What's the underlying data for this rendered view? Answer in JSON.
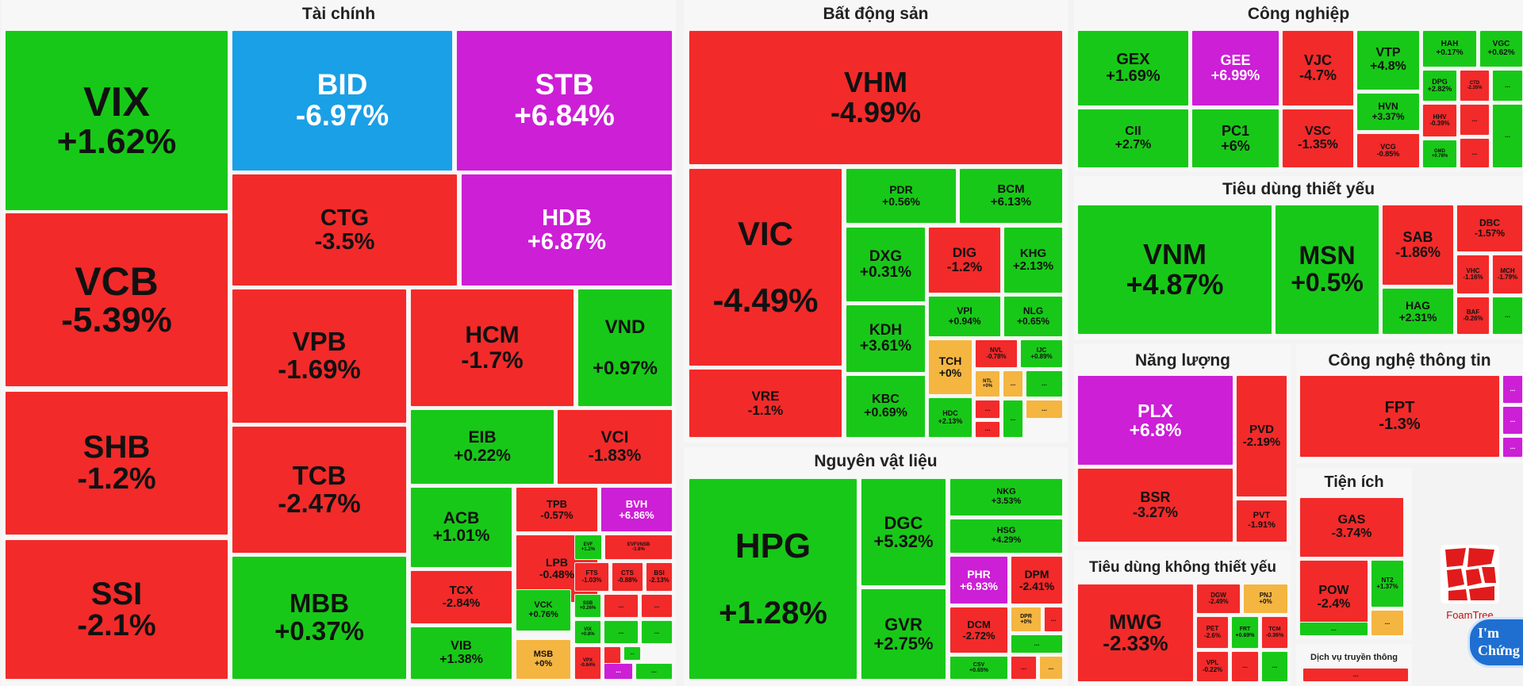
{
  "colors": {
    "up": "#18c818",
    "down": "#f22a2a",
    "ceiling": "#cc1fd6",
    "floor": "#1aa0e6",
    "ref": "#f5b541"
  },
  "chart_data": {
    "type": "treemap",
    "sectors": [
      {
        "name": "Tài chính",
        "tiles": [
          {
            "symbol": "VIX",
            "change": "+1.62%",
            "status": "up"
          },
          {
            "symbol": "VCB",
            "change": "-5.39%",
            "status": "down"
          },
          {
            "symbol": "SHB",
            "change": "-1.2%",
            "status": "down"
          },
          {
            "symbol": "SSI",
            "change": "-2.1%",
            "status": "down"
          },
          {
            "symbol": "BID",
            "change": "-6.97%",
            "status": "floor"
          },
          {
            "symbol": "STB",
            "change": "+6.84%",
            "status": "ceiling"
          },
          {
            "symbol": "CTG",
            "change": "-3.5%",
            "status": "down"
          },
          {
            "symbol": "HDB",
            "change": "+6.87%",
            "status": "ceiling"
          },
          {
            "symbol": "VPB",
            "change": "-1.69%",
            "status": "down"
          },
          {
            "symbol": "TCB",
            "change": "-2.47%",
            "status": "down"
          },
          {
            "symbol": "MBB",
            "change": "+0.37%",
            "status": "up"
          },
          {
            "symbol": "HCM",
            "change": "-1.7%",
            "status": "down"
          },
          {
            "symbol": "VND",
            "change": "+0.97%",
            "status": "up"
          },
          {
            "symbol": "EIB",
            "change": "+0.22%",
            "status": "up"
          },
          {
            "symbol": "VCI",
            "change": "-1.83%",
            "status": "down"
          },
          {
            "symbol": "ACB",
            "change": "+1.01%",
            "status": "up"
          },
          {
            "symbol": "TCX",
            "change": "-2.84%",
            "status": "down"
          },
          {
            "symbol": "VIB",
            "change": "+1.38%",
            "status": "up"
          },
          {
            "symbol": "TPB",
            "change": "-0.57%",
            "status": "down"
          },
          {
            "symbol": "BVH",
            "change": "+6.86%",
            "status": "ceiling"
          },
          {
            "symbol": "LPB",
            "change": "-0.48%",
            "status": "down"
          },
          {
            "symbol": "VCK",
            "change": "+0.76%",
            "status": "up"
          },
          {
            "symbol": "MSB",
            "change": "+0%",
            "status": "ref"
          },
          {
            "symbol": "EVF",
            "change": "+1.2%",
            "status": "up"
          },
          {
            "symbol": "EVFVNSB",
            "change": "-1.6%",
            "status": "down"
          },
          {
            "symbol": "FTS",
            "change": "-1.03%",
            "status": "down"
          },
          {
            "symbol": "CTS",
            "change": "-0.88%",
            "status": "down"
          },
          {
            "symbol": "BSI",
            "change": "-2.13%",
            "status": "down"
          },
          {
            "symbol": "SSB",
            "change": "+0.26%",
            "status": "up"
          },
          {
            "symbol": "VIX",
            "change": "+0.8%",
            "status": "up"
          },
          {
            "symbol": "VPX",
            "change": "-0.84%",
            "status": "down"
          },
          {
            "symbol": "...",
            "change": "",
            "status": "down"
          },
          {
            "symbol": "...",
            "change": "",
            "status": "down"
          },
          {
            "symbol": "...",
            "change": "",
            "status": "up"
          },
          {
            "symbol": "...",
            "change": "",
            "status": "up"
          },
          {
            "symbol": "...",
            "change": "",
            "status": "down"
          },
          {
            "symbol": "...",
            "change": "",
            "status": "up"
          },
          {
            "symbol": "...",
            "change": "",
            "status": "ceiling"
          },
          {
            "symbol": "...",
            "change": "",
            "status": "up"
          }
        ]
      },
      {
        "name": "Bất động sản",
        "tiles": [
          {
            "symbol": "VHM",
            "change": "-4.99%",
            "status": "down"
          },
          {
            "symbol": "VIC",
            "change": "-4.49%",
            "status": "down"
          },
          {
            "symbol": "VRE",
            "change": "-1.1%",
            "status": "down"
          },
          {
            "symbol": "PDR",
            "change": "+0.56%",
            "status": "up"
          },
          {
            "symbol": "BCM",
            "change": "+6.13%",
            "status": "up"
          },
          {
            "symbol": "DXG",
            "change": "+0.31%",
            "status": "up"
          },
          {
            "symbol": "DIG",
            "change": "-1.2%",
            "status": "down"
          },
          {
            "symbol": "KHG",
            "change": "+2.13%",
            "status": "up"
          },
          {
            "symbol": "KDH",
            "change": "+3.61%",
            "status": "up"
          },
          {
            "symbol": "VPI",
            "change": "+0.94%",
            "status": "up"
          },
          {
            "symbol": "NLG",
            "change": "+0.65%",
            "status": "up"
          },
          {
            "symbol": "KBC",
            "change": "+0.69%",
            "status": "up"
          },
          {
            "symbol": "TCH",
            "change": "+0%",
            "status": "ref"
          },
          {
            "symbol": "NVL",
            "change": "-0.78%",
            "status": "down"
          },
          {
            "symbol": "IJC",
            "change": "+0.89%",
            "status": "up"
          },
          {
            "symbol": "NTL",
            "change": "+0%",
            "status": "ref"
          },
          {
            "symbol": "HDC",
            "change": "+2.13%",
            "status": "up"
          },
          {
            "symbol": "...",
            "change": "",
            "status": "down"
          },
          {
            "symbol": "...",
            "change": "",
            "status": "ref"
          },
          {
            "symbol": "...",
            "change": "",
            "status": "up"
          },
          {
            "symbol": "...",
            "change": "",
            "status": "ref"
          },
          {
            "symbol": "...",
            "change": "",
            "status": "down"
          },
          {
            "symbol": "...",
            "change": "",
            "status": "up"
          }
        ]
      },
      {
        "name": "Nguyên vật liệu",
        "tiles": [
          {
            "symbol": "HPG",
            "change": "+1.28%",
            "status": "up"
          },
          {
            "symbol": "DGC",
            "change": "+5.32%",
            "status": "up"
          },
          {
            "symbol": "GVR",
            "change": "+2.75%",
            "status": "up"
          },
          {
            "symbol": "NKG",
            "change": "+3.53%",
            "status": "up"
          },
          {
            "symbol": "HSG",
            "change": "+4.29%",
            "status": "up"
          },
          {
            "symbol": "PHR",
            "change": "+6.93%",
            "status": "ceiling"
          },
          {
            "symbol": "DPM",
            "change": "-2.41%",
            "status": "down"
          },
          {
            "symbol": "DCM",
            "change": "-2.72%",
            "status": "down"
          },
          {
            "symbol": "DPR",
            "change": "+0%",
            "status": "ref"
          },
          {
            "symbol": "CSV",
            "change": "+0.65%",
            "status": "up"
          },
          {
            "symbol": "...",
            "change": "",
            "status": "down"
          },
          {
            "symbol": "...",
            "change": "",
            "status": "up"
          },
          {
            "symbol": "...",
            "change": "",
            "status": "down"
          },
          {
            "symbol": "...",
            "change": "",
            "status": "ref"
          }
        ]
      },
      {
        "name": "Công nghiệp",
        "tiles": [
          {
            "symbol": "GEX",
            "change": "+1.69%",
            "status": "up"
          },
          {
            "symbol": "GEE",
            "change": "+6.99%",
            "status": "ceiling"
          },
          {
            "symbol": "VJC",
            "change": "-4.7%",
            "status": "down"
          },
          {
            "symbol": "VTP",
            "change": "+4.8%",
            "status": "up"
          },
          {
            "symbol": "HAH",
            "change": "+0.17%",
            "status": "up"
          },
          {
            "symbol": "VGC",
            "change": "+0.62%",
            "status": "up"
          },
          {
            "symbol": "CII",
            "change": "+2.7%",
            "status": "up"
          },
          {
            "symbol": "PC1",
            "change": "+6%",
            "status": "up"
          },
          {
            "symbol": "VSC",
            "change": "-1.35%",
            "status": "down"
          },
          {
            "symbol": "HVN",
            "change": "+3.37%",
            "status": "up"
          },
          {
            "symbol": "VCG",
            "change": "-0.85%",
            "status": "down"
          },
          {
            "symbol": "DPG",
            "change": "+2.82%",
            "status": "up"
          },
          {
            "symbol": "CTD",
            "change": "-2.35%",
            "status": "down"
          },
          {
            "symbol": "HHV",
            "change": "-0.39%",
            "status": "down"
          },
          {
            "symbol": "GMD",
            "change": "+0.78%",
            "status": "up"
          },
          {
            "symbol": "...",
            "change": "",
            "status": "down"
          },
          {
            "symbol": "...",
            "change": "",
            "status": "up"
          },
          {
            "symbol": "...",
            "change": "",
            "status": "down"
          },
          {
            "symbol": "...",
            "change": "",
            "status": "up"
          }
        ]
      },
      {
        "name": "Tiêu dùng thiết yếu",
        "tiles": [
          {
            "symbol": "VNM",
            "change": "+4.87%",
            "status": "up"
          },
          {
            "symbol": "MSN",
            "change": "+0.5%",
            "status": "up"
          },
          {
            "symbol": "SAB",
            "change": "-1.86%",
            "status": "down"
          },
          {
            "symbol": "DBC",
            "change": "-1.57%",
            "status": "down"
          },
          {
            "symbol": "HAG",
            "change": "+2.31%",
            "status": "up"
          },
          {
            "symbol": "VHC",
            "change": "-1.16%",
            "status": "down"
          },
          {
            "symbol": "MCH",
            "change": "-1.79%",
            "status": "down"
          },
          {
            "symbol": "BAF",
            "change": "-0.26%",
            "status": "down"
          },
          {
            "symbol": "...",
            "change": "",
            "status": "up"
          },
          {
            "symbol": "...",
            "change": "",
            "status": "down"
          },
          {
            "symbol": "...",
            "change": "",
            "status": "up"
          }
        ]
      },
      {
        "name": "Năng lượng",
        "tiles": [
          {
            "symbol": "PLX",
            "change": "+6.8%",
            "status": "ceiling"
          },
          {
            "symbol": "PVD",
            "change": "-2.19%",
            "status": "down"
          },
          {
            "symbol": "BSR",
            "change": "-3.27%",
            "status": "down"
          },
          {
            "symbol": "PVT",
            "change": "-1.91%",
            "status": "down"
          }
        ]
      },
      {
        "name": "Công nghệ thông tin",
        "tiles": [
          {
            "symbol": "FPT",
            "change": "-1.3%",
            "status": "down"
          },
          {
            "symbol": "...",
            "change": "",
            "status": "ceiling"
          },
          {
            "symbol": "...",
            "change": "",
            "status": "ceiling"
          },
          {
            "symbol": "...",
            "change": "",
            "status": "ceiling"
          }
        ]
      },
      {
        "name": "Tiện ích",
        "tiles": [
          {
            "symbol": "GAS",
            "change": "-3.74%",
            "status": "down"
          },
          {
            "symbol": "POW",
            "change": "-2.4%",
            "status": "down"
          },
          {
            "symbol": "NT2",
            "change": "+1.37%",
            "status": "up"
          },
          {
            "symbol": "...",
            "change": "",
            "status": "ref"
          },
          {
            "symbol": "...",
            "change": "",
            "status": "up"
          }
        ]
      },
      {
        "name": "Tiêu dùng không thiết yếu",
        "tiles": [
          {
            "symbol": "MWG",
            "change": "-2.33%",
            "status": "down"
          },
          {
            "symbol": "DGW",
            "change": "-2.49%",
            "status": "down"
          },
          {
            "symbol": "PNJ",
            "change": "+0%",
            "status": "ref"
          },
          {
            "symbol": "PET",
            "change": "-2.6%",
            "status": "down"
          },
          {
            "symbol": "FRT",
            "change": "+0.69%",
            "status": "up"
          },
          {
            "symbol": "TCM",
            "change": "-0.36%",
            "status": "down"
          },
          {
            "symbol": "VPL",
            "change": "-0.22%",
            "status": "down"
          },
          {
            "symbol": "...",
            "change": "",
            "status": "down"
          },
          {
            "symbol": "...",
            "change": "",
            "status": "up"
          }
        ]
      },
      {
        "name": "Dịch vụ truyền thông",
        "tiles": [
          {
            "symbol": "...",
            "change": "",
            "status": "down"
          }
        ]
      }
    ]
  },
  "watermark": {
    "brand": "FoamTree",
    "bubble_line1": "I'm",
    "bubble_line2": "Chứng"
  }
}
